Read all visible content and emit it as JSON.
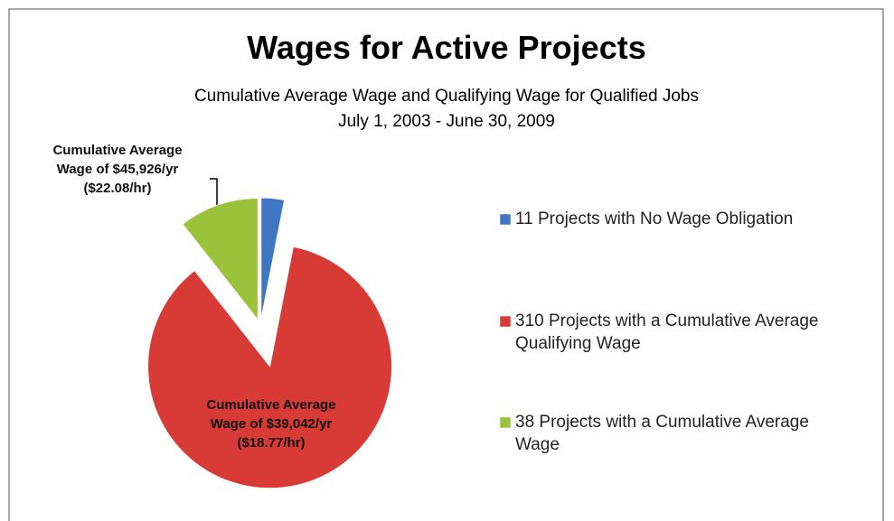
{
  "chart_data": {
    "type": "pie",
    "title": "Wages for Active Projects",
    "subtitle": [
      "Cumulative Average Wage and Qualifying Wage for Qualified Jobs",
      "July 1, 2003 - June 30, 2009"
    ],
    "categories": [
      "11 Projects with No Wage Obligation",
      "310 Projects with a Cumulative Average Qualifying Wage",
      "38 Projects with a Cumulative Average Wage"
    ],
    "values": [
      11,
      310,
      38
    ],
    "colors": [
      "#3f76c4",
      "#d83a36",
      "#9bc23b"
    ],
    "data_labels": [
      null,
      [
        "Cumulative Average",
        "Wage of $39,042/yr",
        "($18.77/hr)"
      ],
      [
        "Cumulative Average",
        "Wage  of $45,926/yr",
        "($22.08/hr)"
      ]
    ],
    "legend": "right"
  }
}
